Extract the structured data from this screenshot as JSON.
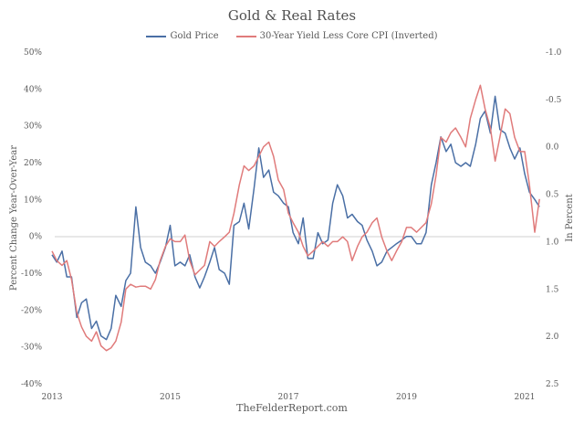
{
  "chart_data": {
    "type": "line",
    "title": "Gold & Real Rates",
    "source": "TheFelderReport.com",
    "ylabel_left": "Percent Change Year-Over-Year",
    "ylabel_right": "In Percent",
    "ylim_left": [
      -40,
      50
    ],
    "ylim_right": [
      2.5,
      -1.0
    ],
    "right_axis_inverted": true,
    "xlim": [
      2013.0,
      2021.4
    ],
    "x_ticks": [
      {
        "value": 2013,
        "label": "2013"
      },
      {
        "value": 2015,
        "label": "2015"
      },
      {
        "value": 2017,
        "label": "2017"
      },
      {
        "value": 2019,
        "label": "2019"
      },
      {
        "value": 2021,
        "label": "2021"
      }
    ],
    "y_ticks_left": [
      {
        "value": 50,
        "label": "50%"
      },
      {
        "value": 40,
        "label": "40%"
      },
      {
        "value": 30,
        "label": "30%"
      },
      {
        "value": 20,
        "label": "20%"
      },
      {
        "value": 10,
        "label": "10%"
      },
      {
        "value": 0,
        "label": "0%"
      },
      {
        "value": -10,
        "label": "-10%"
      },
      {
        "value": -20,
        "label": "-20%"
      },
      {
        "value": -30,
        "label": "-30%"
      },
      {
        "value": -40,
        "label": "-40%"
      }
    ],
    "y_ticks_right": [
      {
        "value": -1.0,
        "label": "-1.0"
      },
      {
        "value": -0.5,
        "label": "-0.5"
      },
      {
        "value": 0.0,
        "label": "0.0"
      },
      {
        "value": 0.5,
        "label": "0.5"
      },
      {
        "value": 1.0,
        "label": "1.0"
      },
      {
        "value": 1.5,
        "label": "1.5"
      },
      {
        "value": 2.0,
        "label": "2.0"
      },
      {
        "value": 2.5,
        "label": "2.5"
      }
    ],
    "legend_position": "top-center",
    "grid": false,
    "series": [
      {
        "name": "Gold Price",
        "axis": "left",
        "color": "#4a6fa5",
        "x": [
          2013.0,
          2013.08,
          2013.17,
          2013.25,
          2013.33,
          2013.42,
          2013.5,
          2013.58,
          2013.67,
          2013.75,
          2013.83,
          2013.92,
          2014.0,
          2014.08,
          2014.17,
          2014.25,
          2014.33,
          2014.42,
          2014.5,
          2014.58,
          2014.67,
          2014.75,
          2014.83,
          2014.92,
          2015.0,
          2015.08,
          2015.17,
          2015.25,
          2015.33,
          2015.42,
          2015.5,
          2015.58,
          2015.67,
          2015.75,
          2015.83,
          2015.92,
          2016.0,
          2016.08,
          2016.17,
          2016.25,
          2016.33,
          2016.42,
          2016.5,
          2016.58,
          2016.67,
          2016.75,
          2016.83,
          2016.92,
          2017.0,
          2017.08,
          2017.17,
          2017.25,
          2017.33,
          2017.42,
          2017.5,
          2017.58,
          2017.67,
          2017.75,
          2017.83,
          2017.92,
          2018.0,
          2018.08,
          2018.17,
          2018.25,
          2018.33,
          2018.42,
          2018.5,
          2018.58,
          2018.67,
          2018.75,
          2018.83,
          2018.92,
          2019.0,
          2019.08,
          2019.17,
          2019.25,
          2019.33,
          2019.42,
          2019.5,
          2019.58,
          2019.67,
          2019.75,
          2019.83,
          2019.92,
          2020.0,
          2020.08,
          2020.17,
          2020.25,
          2020.33,
          2020.42,
          2020.5,
          2020.58,
          2020.67,
          2020.75,
          2020.83,
          2020.92,
          2021.0,
          2021.08,
          2021.17,
          2021.25
        ],
        "y": [
          -5,
          -7,
          -4,
          -11,
          -11,
          -22,
          -18,
          -17,
          -25,
          -23,
          -27,
          -28,
          -25,
          -16,
          -19,
          -12,
          -10,
          8,
          -3,
          -7,
          -8,
          -10,
          -7,
          -3,
          3,
          -8,
          -7,
          -8,
          -5,
          -11,
          -14,
          -11,
          -7,
          -3,
          -9,
          -10,
          -13,
          3,
          4,
          9,
          2,
          13,
          24,
          16,
          18,
          12,
          11,
          9,
          8,
          1,
          -2,
          5,
          -6,
          -6,
          1,
          -2,
          -1,
          9,
          14,
          11,
          5,
          6,
          4,
          3,
          -1,
          -4,
          -8,
          -7,
          -4,
          -3,
          -2,
          -1,
          0,
          0,
          -2,
          -2,
          1,
          14,
          20,
          27,
          23,
          25,
          20,
          19,
          20,
          19,
          25,
          32,
          34,
          28,
          38,
          29,
          28,
          24,
          21,
          24,
          17,
          12,
          10,
          8
        ]
      },
      {
        "name": "30-Year Yield Less Core CPI (Inverted)",
        "axis": "right",
        "color": "#e07b7b",
        "x": [
          2013.0,
          2013.08,
          2013.17,
          2013.25,
          2013.33,
          2013.42,
          2013.5,
          2013.58,
          2013.67,
          2013.75,
          2013.83,
          2013.92,
          2014.0,
          2014.08,
          2014.17,
          2014.25,
          2014.33,
          2014.42,
          2014.5,
          2014.58,
          2014.67,
          2014.75,
          2014.83,
          2014.92,
          2015.0,
          2015.08,
          2015.17,
          2015.25,
          2015.33,
          2015.42,
          2015.5,
          2015.58,
          2015.67,
          2015.75,
          2015.83,
          2015.92,
          2016.0,
          2016.08,
          2016.17,
          2016.25,
          2016.33,
          2016.42,
          2016.5,
          2016.58,
          2016.67,
          2016.75,
          2016.83,
          2016.92,
          2017.0,
          2017.08,
          2017.17,
          2017.25,
          2017.33,
          2017.42,
          2017.5,
          2017.58,
          2017.67,
          2017.75,
          2017.83,
          2017.92,
          2018.0,
          2018.08,
          2018.17,
          2018.25,
          2018.33,
          2018.42,
          2018.5,
          2018.58,
          2018.67,
          2018.75,
          2018.83,
          2018.92,
          2019.0,
          2019.08,
          2019.17,
          2019.25,
          2019.33,
          2019.42,
          2019.5,
          2019.58,
          2019.67,
          2019.75,
          2019.83,
          2019.92,
          2020.0,
          2020.08,
          2020.17,
          2020.25,
          2020.33,
          2020.42,
          2020.5,
          2020.58,
          2020.67,
          2020.75,
          2020.83,
          2020.92,
          2021.0,
          2021.08,
          2021.17,
          2021.25
        ],
        "y": [
          1.1,
          1.2,
          1.25,
          1.2,
          1.4,
          1.75,
          1.9,
          2.0,
          2.05,
          1.95,
          2.1,
          2.15,
          2.12,
          2.05,
          1.85,
          1.5,
          1.45,
          1.48,
          1.47,
          1.47,
          1.5,
          1.4,
          1.2,
          1.05,
          0.97,
          1.0,
          1.0,
          0.93,
          1.2,
          1.35,
          1.3,
          1.25,
          1.0,
          1.05,
          1.0,
          0.95,
          0.9,
          0.7,
          0.4,
          0.2,
          0.25,
          0.2,
          0.1,
          0.0,
          -0.05,
          0.1,
          0.35,
          0.45,
          0.7,
          0.8,
          0.9,
          1.05,
          1.15,
          1.1,
          1.05,
          1.0,
          1.05,
          1.0,
          1.0,
          0.95,
          1.0,
          1.2,
          1.05,
          0.95,
          0.9,
          0.8,
          0.75,
          0.95,
          1.1,
          1.2,
          1.1,
          1.0,
          0.85,
          0.85,
          0.9,
          0.85,
          0.8,
          0.6,
          0.3,
          -0.1,
          -0.05,
          -0.15,
          -0.2,
          -0.1,
          0.0,
          -0.3,
          -0.5,
          -0.65,
          -0.4,
          -0.2,
          0.15,
          -0.1,
          -0.4,
          -0.35,
          -0.1,
          0.05,
          0.05,
          0.4,
          0.9,
          0.55
        ]
      }
    ]
  }
}
